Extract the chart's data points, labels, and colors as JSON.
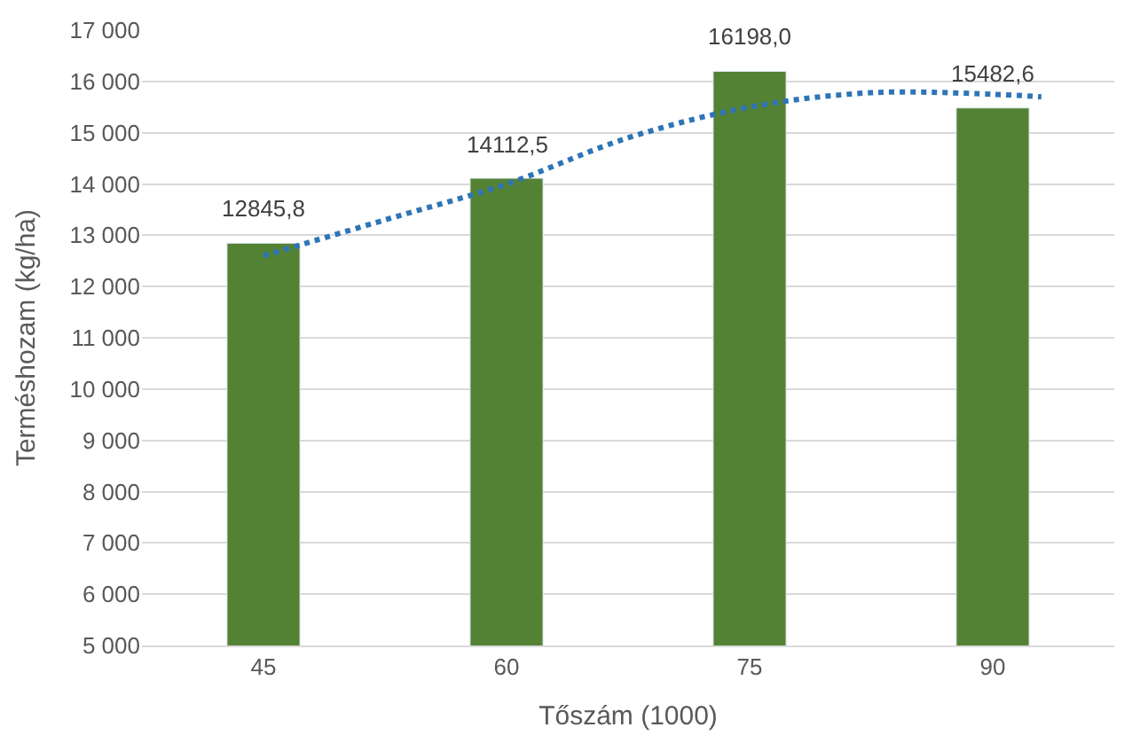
{
  "chart_data": {
    "type": "bar",
    "xlabel": "Tőszám (1000)",
    "ylabel": "Terméshozam (kg/ha)",
    "x": [
      45,
      60,
      75,
      90
    ],
    "xlim": [
      37.5,
      97.5
    ],
    "xticks": [
      45,
      60,
      75,
      90
    ],
    "ylim": [
      5000,
      17000
    ],
    "yticks": [
      {
        "value": 5000,
        "label": "5 000"
      },
      {
        "value": 6000,
        "label": "6 000"
      },
      {
        "value": 7000,
        "label": "7 000"
      },
      {
        "value": 8000,
        "label": "8 000"
      },
      {
        "value": 9000,
        "label": "9 000"
      },
      {
        "value": 10000,
        "label": "10 000"
      },
      {
        "value": 11000,
        "label": "11 000"
      },
      {
        "value": 12000,
        "label": "12 000"
      },
      {
        "value": 13000,
        "label": "13 000"
      },
      {
        "value": 14000,
        "label": "14 000"
      },
      {
        "value": 15000,
        "label": "15 000"
      },
      {
        "value": 16000,
        "label": "16 000"
      },
      {
        "value": 17000,
        "label": "17 000"
      }
    ],
    "grid": "y",
    "series": [
      {
        "color": "#548235",
        "values": [
          12845.8,
          14112.5,
          16198.0,
          15482.6
        ],
        "value_labels": [
          "12845,8",
          "14112,5",
          "16198,0",
          "15482,6"
        ]
      },
      {
        "type": "line",
        "color": "#2e75b6",
        "line_style": "dotted",
        "x": [
          45,
          52.5,
          60,
          67.5,
          75,
          82.5,
          90,
          93
        ],
        "values": [
          12600,
          13300,
          14000,
          14900,
          15500,
          15780,
          15750,
          15700
        ]
      }
    ]
  }
}
